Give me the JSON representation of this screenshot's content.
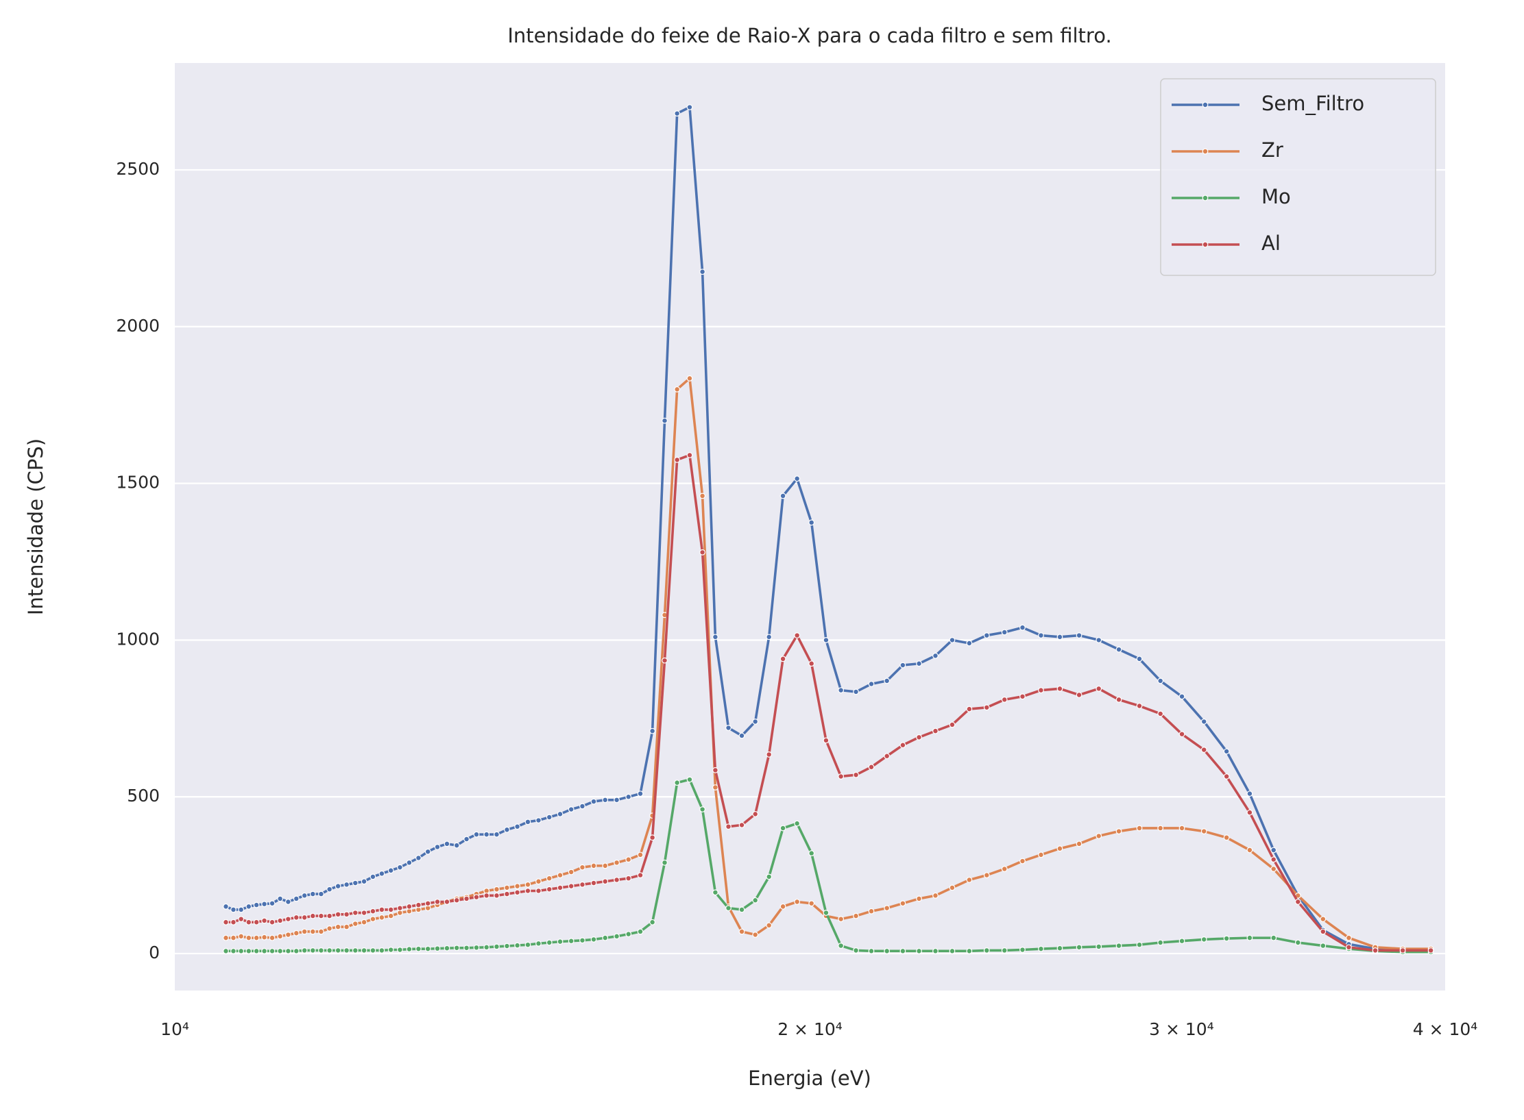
{
  "chart_data": {
    "type": "line",
    "title": "Intensidade do feixe de Raio-X para o cada filtro e sem filtro.",
    "xlabel": "Energia (eV)",
    "ylabel": "Intensidade (CPS)",
    "xscale": "log",
    "grid": "y",
    "legend": "upper right",
    "xlim": [
      10000,
      40000
    ],
    "xticks": [
      {
        "value": 10000,
        "label": "10⁴"
      },
      {
        "value": 20000,
        "label": "2 × 10⁴"
      },
      {
        "value": 30000,
        "label": "3 × 10⁴"
      },
      {
        "value": 40000,
        "label": "4 × 10⁴"
      }
    ],
    "ylim": [
      -118,
      2841
    ],
    "yticks": [
      0,
      500,
      1000,
      1500,
      2000,
      2500
    ],
    "x": [
      10573,
      10660,
      10750,
      10840,
      10932,
      11026,
      11121,
      11218,
      11317,
      11418,
      11520,
      11625,
      11731,
      11839,
      11950,
      12062,
      12177,
      12294,
      12413,
      12534,
      12659,
      12785,
      12915,
      13046,
      13181,
      13318,
      13458,
      13602,
      13749,
      13898,
      14052,
      14208,
      14368,
      14532,
      14700,
      14872,
      15048,
      15227,
      15412,
      15601,
      15795,
      15994,
      16197,
      16406,
      16620,
      16840,
      17067,
      17300,
      17539,
      17785,
      18037,
      18297,
      18566,
      18841,
      19125,
      19419,
      19720,
      20033,
      20354,
      20687,
      21029,
      21385,
      21751,
      22132,
      22527,
      22934,
      23358,
      23797,
      24254,
      24729,
      25220,
      25734,
      26269,
      26827,
      27409,
      28017,
      28652,
      29317,
      30013,
      30744,
      31511,
      32317,
      33170,
      34065,
      35008,
      36007,
      37063,
      38190,
      39380
    ],
    "series": [
      {
        "name": "Sem_Filtro",
        "color": "#4c72b0",
        "values": [
          150,
          140,
          140,
          150,
          155,
          158,
          160,
          175,
          165,
          175,
          185,
          190,
          190,
          205,
          215,
          220,
          225,
          230,
          245,
          255,
          265,
          275,
          290,
          305,
          325,
          340,
          350,
          345,
          365,
          380,
          380,
          380,
          395,
          405,
          420,
          425,
          435,
          445,
          460,
          470,
          485,
          490,
          490,
          500,
          510,
          710,
          1700,
          2680,
          2700,
          2175,
          1010,
          720,
          695,
          740,
          1010,
          1460,
          1515,
          1375,
          1000,
          840,
          835,
          860,
          870,
          920,
          925,
          950,
          1000,
          990,
          1015,
          1025,
          1040,
          1015,
          1010,
          1015,
          1000,
          970,
          940,
          870,
          820,
          740,
          645,
          510,
          330,
          185,
          75,
          30,
          15,
          12,
          12
        ]
      },
      {
        "name": "Zr",
        "color": "#dd8452",
        "values": [
          50,
          50,
          55,
          50,
          50,
          52,
          50,
          55,
          60,
          65,
          70,
          70,
          70,
          80,
          85,
          85,
          95,
          100,
          110,
          115,
          120,
          130,
          135,
          140,
          145,
          155,
          165,
          175,
          180,
          190,
          200,
          205,
          210,
          215,
          220,
          230,
          240,
          250,
          260,
          275,
          280,
          280,
          290,
          300,
          315,
          440,
          1080,
          1800,
          1835,
          1460,
          530,
          150,
          70,
          60,
          90,
          150,
          165,
          160,
          120,
          110,
          120,
          135,
          145,
          160,
          175,
          185,
          210,
          235,
          250,
          270,
          295,
          315,
          335,
          350,
          375,
          390,
          400,
          400,
          400,
          390,
          370,
          330,
          270,
          185,
          110,
          50,
          20,
          15,
          15
        ]
      },
      {
        "name": "Mo",
        "color": "#55a868",
        "values": [
          8,
          8,
          8,
          8,
          8,
          8,
          8,
          8,
          8,
          8,
          10,
          10,
          10,
          10,
          10,
          10,
          10,
          10,
          10,
          10,
          12,
          12,
          14,
          15,
          15,
          16,
          17,
          18,
          18,
          19,
          20,
          22,
          24,
          26,
          28,
          32,
          35,
          38,
          40,
          42,
          45,
          50,
          55,
          62,
          70,
          100,
          290,
          545,
          555,
          460,
          195,
          145,
          140,
          170,
          245,
          400,
          415,
          320,
          130,
          25,
          10,
          8,
          8,
          8,
          8,
          8,
          8,
          8,
          10,
          10,
          12,
          15,
          17,
          20,
          22,
          25,
          28,
          35,
          40,
          45,
          48,
          50,
          50,
          35,
          25,
          15,
          8,
          5,
          5
        ]
      },
      {
        "name": "Al",
        "color": "#c44e52",
        "values": [
          100,
          100,
          110,
          100,
          100,
          105,
          100,
          105,
          110,
          115,
          115,
          120,
          120,
          120,
          125,
          125,
          130,
          130,
          135,
          140,
          140,
          145,
          150,
          155,
          160,
          165,
          165,
          170,
          175,
          180,
          185,
          185,
          190,
          195,
          200,
          200,
          205,
          210,
          215,
          220,
          225,
          230,
          235,
          240,
          250,
          370,
          935,
          1575,
          1590,
          1280,
          585,
          405,
          410,
          445,
          635,
          940,
          1015,
          925,
          680,
          565,
          570,
          595,
          630,
          665,
          690,
          710,
          730,
          780,
          785,
          810,
          820,
          840,
          845,
          825,
          845,
          810,
          790,
          765,
          700,
          650,
          565,
          450,
          300,
          165,
          70,
          20,
          10,
          10,
          10
        ]
      }
    ]
  }
}
